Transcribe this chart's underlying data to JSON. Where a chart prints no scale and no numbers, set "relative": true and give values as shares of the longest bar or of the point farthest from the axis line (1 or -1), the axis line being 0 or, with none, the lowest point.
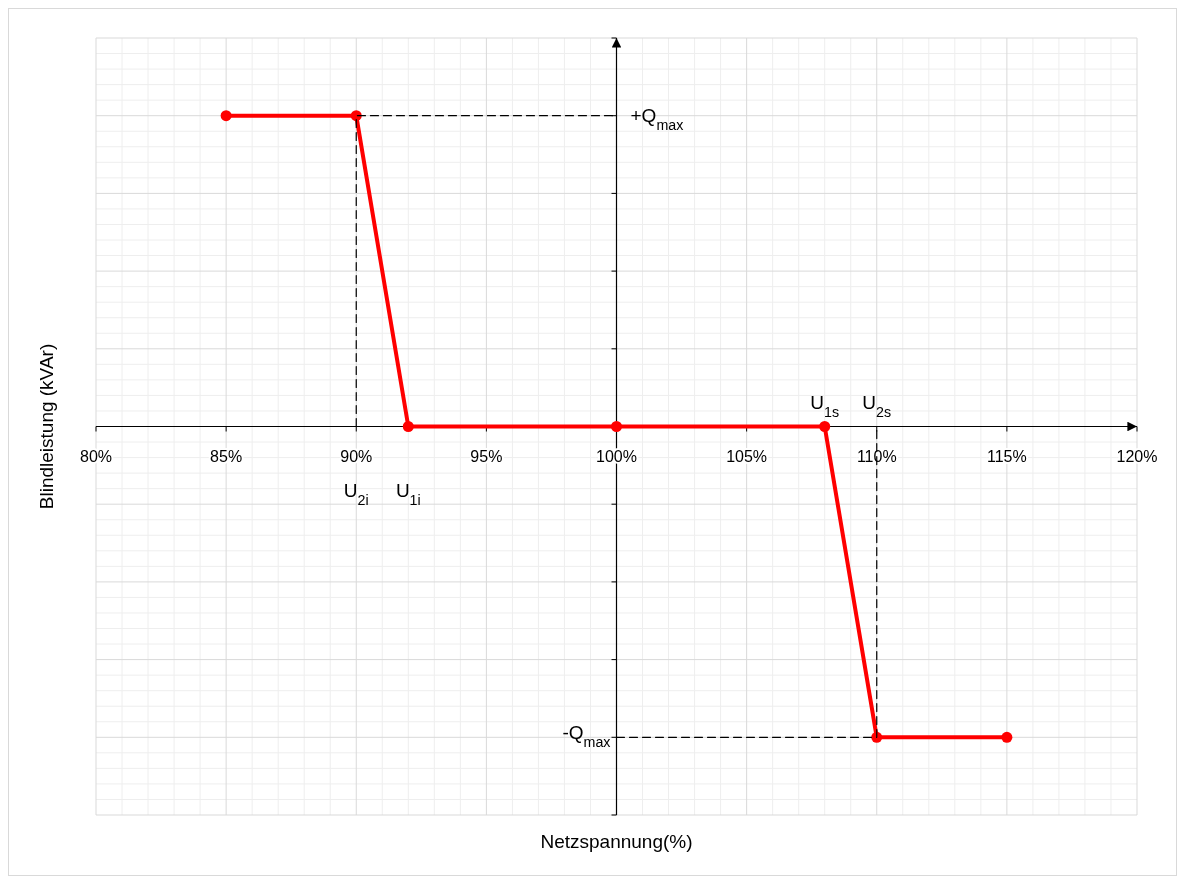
{
  "chart_data": {
    "type": "line",
    "relative": true,
    "xlabel": "Netzspannung(%)",
    "ylabel": "Blindleistung (kVAr)",
    "x": [
      85,
      90,
      92,
      100,
      108,
      110,
      115
    ],
    "xlim": [
      80,
      120
    ],
    "xticks": [
      {
        "value": 80,
        "label": "80%"
      },
      {
        "value": 85,
        "label": "85%"
      },
      {
        "value": 90,
        "label": "90%"
      },
      {
        "value": 95,
        "label": "95%"
      },
      {
        "value": 100,
        "label": "100%"
      },
      {
        "value": 105,
        "label": "105%"
      },
      {
        "value": 110,
        "label": "110%"
      },
      {
        "value": 115,
        "label": "115%"
      },
      {
        "value": 120,
        "label": "120%"
      }
    ],
    "grid": true,
    "ref_lines": [
      {
        "axis": "x",
        "value": 100,
        "color": "#000000"
      }
    ],
    "series": [
      {
        "color": "#ff0000",
        "values": [
          1,
          1,
          0,
          0,
          0,
          -1,
          -1
        ],
        "marker": "circle",
        "line_style": "solid"
      },
      {
        "color": "#000000",
        "x": [
          90,
          90,
          100
        ],
        "values": [
          0,
          1,
          1
        ],
        "marker": "none",
        "line_style": "dashed"
      },
      {
        "color": "#000000",
        "x": [
          100,
          110,
          110
        ],
        "values": [
          -1,
          -1,
          0
        ],
        "marker": "none",
        "line_style": "dashed"
      }
    ],
    "annotations": [
      {
        "text": "+Q$_{max}$",
        "x": 100,
        "y": 1
      },
      {
        "text": "-Q$_{max}$",
        "x": 100,
        "y": -1
      },
      {
        "text": "U$_{2i}$",
        "x": 90,
        "y": 0
      },
      {
        "text": "U$_{1i}$",
        "x": 92,
        "y": 0
      },
      {
        "text": "U$_{1s}$",
        "x": 108,
        "y": 0
      },
      {
        "text": "U$_{2s}$",
        "x": 110,
        "y": 0
      }
    ]
  }
}
